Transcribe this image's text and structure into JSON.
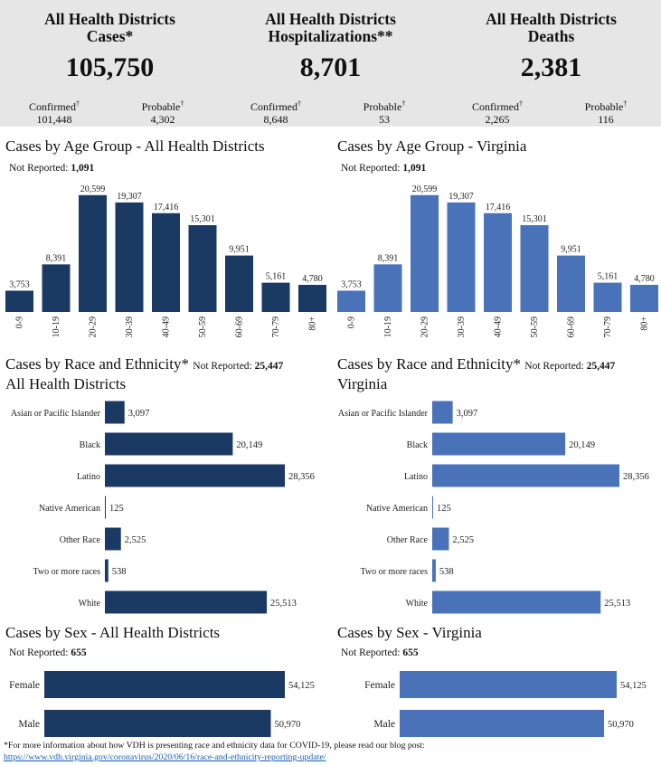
{
  "summary": [
    {
      "title1": "All Health Districts",
      "title2": "Cases*",
      "total": "105,750",
      "confirmed_label": "Confirmed",
      "confirmed": "101,448",
      "probable_label": "Probable",
      "probable": "4,302"
    },
    {
      "title1": "All Health Districts",
      "title2": "Hospitalizations**",
      "total": "8,701",
      "confirmed_label": "Confirmed",
      "confirmed": "8,648",
      "probable_label": "Probable",
      "probable": "53"
    },
    {
      "title1": "All Health Districts",
      "title2": "Deaths",
      "total": "2,381",
      "confirmed_label": "Confirmed",
      "confirmed": "2,265",
      "probable_label": "Probable",
      "probable": "116"
    }
  ],
  "dagger": "†",
  "colors": {
    "dark": "#1b3a63",
    "light": "#4a72b8",
    "summary_bg": "#e6e6e6"
  },
  "sections": {
    "age_left_title": "Cases by Age Group - All Health Districts",
    "age_right_title": "Cases by Age Group - Virginia",
    "age_nr_label": "Not Reported:",
    "age_nr_value": "1,091",
    "race_left_title1": "Cases by Race and Ethnicity*",
    "race_left_title2": "All Health Districts",
    "race_right_title1": "Cases by Race and Ethnicity*",
    "race_right_title2": "Virginia",
    "race_nr_label": "Not Reported:",
    "race_nr_value": "25,447",
    "sex_left_title": "Cases by Sex - All Health Districts",
    "sex_right_title": "Cases by Sex - Virginia",
    "sex_nr_label": "Not Reported:",
    "sex_nr_value": "655"
  },
  "chart_data": [
    {
      "type": "bar",
      "title": "Cases by Age Group - All Health Districts",
      "categories": [
        "0-9",
        "10-19",
        "20-29",
        "30-39",
        "40-49",
        "50-59",
        "60-69",
        "70-79",
        "80+"
      ],
      "values": [
        3753,
        8391,
        20599,
        19307,
        17416,
        15301,
        9951,
        5161,
        4780
      ],
      "labels": [
        "3,753",
        "8,391",
        "20,599",
        "19,307",
        "17,416",
        "15,301",
        "9,951",
        "5,161",
        "4,780"
      ],
      "ylim": [
        0,
        22000
      ]
    },
    {
      "type": "bar",
      "title": "Cases by Age Group - Virginia",
      "categories": [
        "0-9",
        "10-19",
        "20-29",
        "30-39",
        "40-49",
        "50-59",
        "60-69",
        "70-79",
        "80+"
      ],
      "values": [
        3753,
        8391,
        20599,
        19307,
        17416,
        15301,
        9951,
        5161,
        4780
      ],
      "labels": [
        "3,753",
        "8,391",
        "20,599",
        "19,307",
        "17,416",
        "15,301",
        "9,951",
        "5,161",
        "4,780"
      ],
      "ylim": [
        0,
        22000
      ]
    },
    {
      "type": "bar",
      "orientation": "horizontal",
      "title": "Cases by Race and Ethnicity* All Health Districts",
      "categories": [
        "Asian or Pacific Islander",
        "Black",
        "Latino",
        "Native American",
        "Other Race",
        "Two or more races",
        "White"
      ],
      "values": [
        3097,
        20149,
        28356,
        125,
        2525,
        538,
        25513
      ],
      "labels": [
        "3,097",
        "20,149",
        "28,356",
        "125",
        "2,525",
        "538",
        "25,513"
      ],
      "xlim": [
        0,
        28356
      ]
    },
    {
      "type": "bar",
      "orientation": "horizontal",
      "title": "Cases by Race and Ethnicity* Virginia",
      "categories": [
        "Asian or Pacific Islander",
        "Black",
        "Latino",
        "Native American",
        "Other Race",
        "Two or more races",
        "White"
      ],
      "values": [
        3097,
        20149,
        28356,
        125,
        2525,
        538,
        25513
      ],
      "labels": [
        "3,097",
        "20,149",
        "28,356",
        "125",
        "2,525",
        "538",
        "25,513"
      ],
      "xlim": [
        0,
        28356
      ]
    },
    {
      "type": "bar",
      "orientation": "horizontal",
      "title": "Cases by Sex - All Health Districts",
      "categories": [
        "Female",
        "Male"
      ],
      "values": [
        54125,
        50970
      ],
      "labels": [
        "54,125",
        "50,970"
      ],
      "xlim": [
        0,
        54125
      ]
    },
    {
      "type": "bar",
      "orientation": "horizontal",
      "title": "Cases by Sex - Virginia",
      "categories": [
        "Female",
        "Male"
      ],
      "values": [
        54125,
        50970
      ],
      "labels": [
        "54,125",
        "50,970"
      ],
      "xlim": [
        0,
        54125
      ]
    }
  ],
  "footnote": {
    "text": "*For more information about how VDH is presenting race and ethnicity data for COVID-19, please read our blog post:",
    "link": "https://www.vdh.virginia.gov/coronavirus/2020/06/16/race-and-ethnicity-reporting-update/"
  }
}
